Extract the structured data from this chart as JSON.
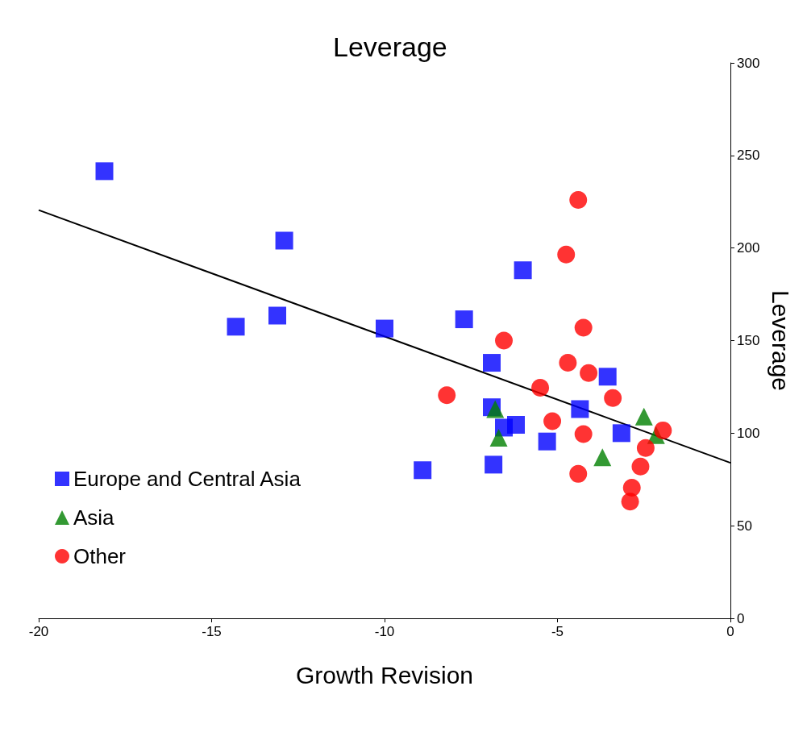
{
  "chart_data": {
    "type": "scatter",
    "title": "Leverage",
    "xlabel": "Growth Revision",
    "ylabel": "Leverage",
    "xlim": [
      -20,
      0
    ],
    "xticks": [
      -20,
      -15,
      -10,
      -5,
      0
    ],
    "ylim": [
      0,
      300
    ],
    "yticks": [
      0,
      50,
      100,
      150,
      200,
      250,
      300
    ],
    "grid": false,
    "legend": "bottom left",
    "series": [
      {
        "name": "Europe and Central Asia",
        "color": "#0000ff",
        "marker": "square",
        "x": [
          -18.1,
          -12.9,
          -14.3,
          -13.1,
          -10.0,
          -7.7,
          -6.0,
          -6.9,
          -8.9,
          -6.85,
          -3.55,
          -6.9,
          -6.55,
          -6.2,
          -5.3,
          -4.35,
          -3.15
        ],
        "values": [
          241.5,
          204,
          157.5,
          163.5,
          156.5,
          161.5,
          188,
          138,
          80,
          83,
          130.5,
          114,
          103,
          104.5,
          95.5,
          113,
          100
        ]
      },
      {
        "name": "Asia",
        "color": "#008000",
        "marker": "triangle",
        "x": [
          -6.8,
          -6.7,
          -3.7,
          -2.5,
          -2.15
        ],
        "values": [
          113,
          97.5,
          87,
          109,
          99
        ]
      },
      {
        "name": "Other",
        "color": "#ff0000",
        "marker": "circle",
        "x": [
          -4.4,
          -4.75,
          -4.25,
          -6.55,
          -4.7,
          -4.1,
          -5.5,
          -8.2,
          -3.4,
          -5.15,
          -4.25,
          -1.95,
          -2.45,
          -2.6,
          -4.4,
          -2.85,
          -2.9
        ],
        "values": [
          226,
          196.5,
          157,
          150,
          138,
          132.5,
          124.5,
          120.5,
          119,
          106.5,
          99.5,
          101.5,
          92,
          82,
          78,
          70.5,
          63
        ]
      },
      {
        "type": "line",
        "color": "#000000",
        "marker": "none",
        "line_style": "solid",
        "x": [
          -20,
          0
        ],
        "values": [
          220.5,
          84
        ]
      }
    ]
  }
}
